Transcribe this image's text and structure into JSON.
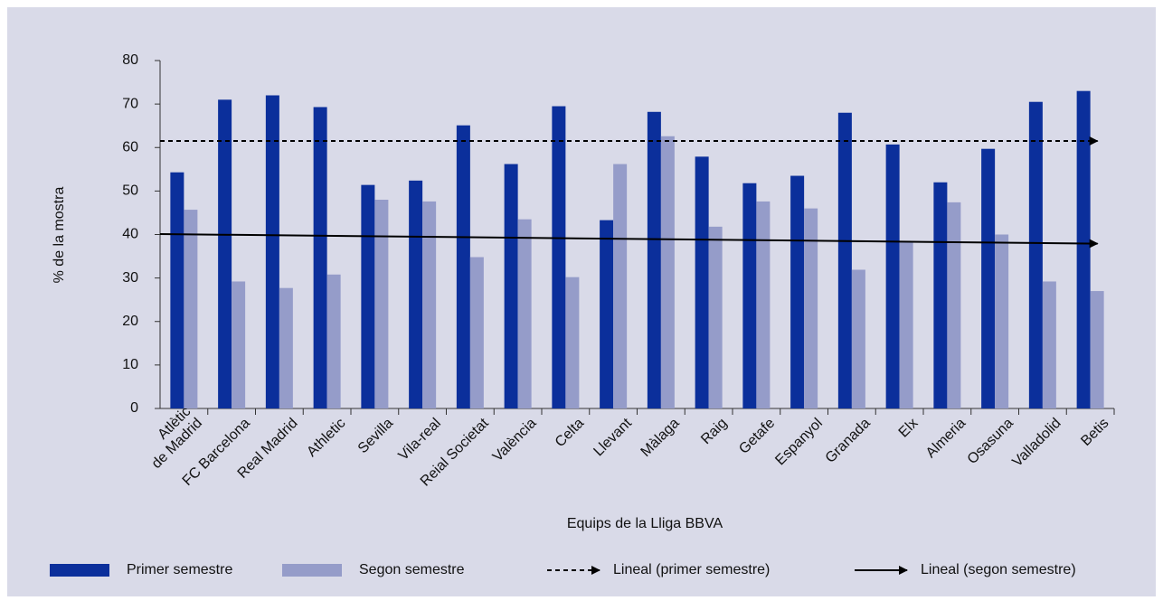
{
  "chart_data": {
    "type": "bar",
    "x_label": "Equips de la Lliga BBVA",
    "y_label": "% de la mostra",
    "categories": [
      "Atlètic\nde Madrid",
      "FC Barcelona",
      "Real Madrid",
      "Athletic",
      "Sevilla",
      "Vila-real",
      "Reial Societat",
      "València",
      "Celta",
      "Llevant",
      "Màlaga",
      "Raig",
      "Getafe",
      "Espanyol",
      "Granada",
      "Elx",
      "Almeria",
      "Osasuna",
      "Valladolid",
      "Betis"
    ],
    "series": [
      {
        "name": "Primer semestre",
        "color": "#0b2f9b",
        "values": [
          54.3,
          71,
          72,
          69.3,
          51.4,
          52.4,
          65.1,
          56.2,
          69.5,
          43.3,
          68.2,
          57.9,
          51.8,
          53.5,
          68,
          60.7,
          52,
          59.7,
          70.5,
          73
        ]
      },
      {
        "name": "Segon semestre",
        "color": "#959cc9",
        "values": [
          45.7,
          29.2,
          27.7,
          30.8,
          48,
          47.6,
          34.8,
          43.5,
          30.2,
          56.2,
          62.6,
          41.8,
          47.6,
          46,
          31.9,
          38.3,
          47.4,
          40,
          29.2,
          27
        ]
      }
    ],
    "trendlines": [
      {
        "name": "Lineal (primer semestre)",
        "color": "#000000",
        "dashed": true,
        "values": [
          61.5,
          61.5
        ]
      },
      {
        "name": "Lineal (segon semestre)",
        "color": "#000000",
        "dashed": false,
        "values": [
          40.1,
          37.9
        ]
      }
    ],
    "ylim": [
      0,
      80
    ],
    "yticks": [
      0,
      10,
      20,
      30,
      40,
      50,
      60,
      70,
      80
    ]
  }
}
